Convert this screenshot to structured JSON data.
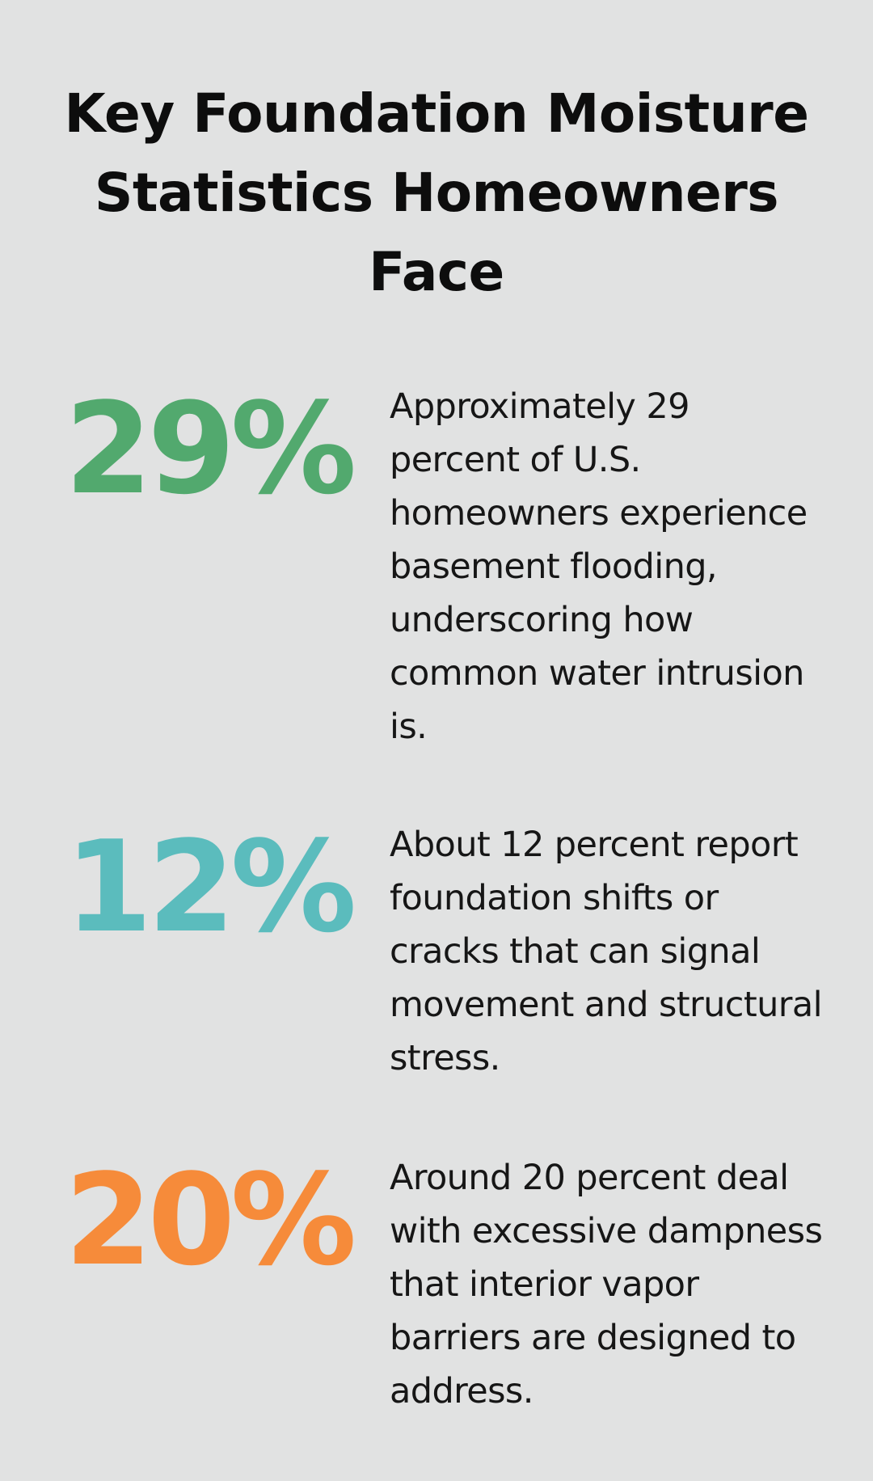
{
  "title": "Key Foundation Moisture Statistics Homeowners Face",
  "stats": [
    {
      "value": "29%",
      "color": "#52a96e",
      "text": "Approximately 29 percent of U.S. homeowners experience basement flooding, underscoring how common water intrusion is."
    },
    {
      "value": "12%",
      "color": "#5bbcbd",
      "text": "About 12 percent report foundation shifts or cracks that can signal movement and structural stress."
    },
    {
      "value": "20%",
      "color": "#f68b3a",
      "text": "Around 20 percent deal with excessive dampness that interior vapor barriers are designed to address."
    }
  ]
}
